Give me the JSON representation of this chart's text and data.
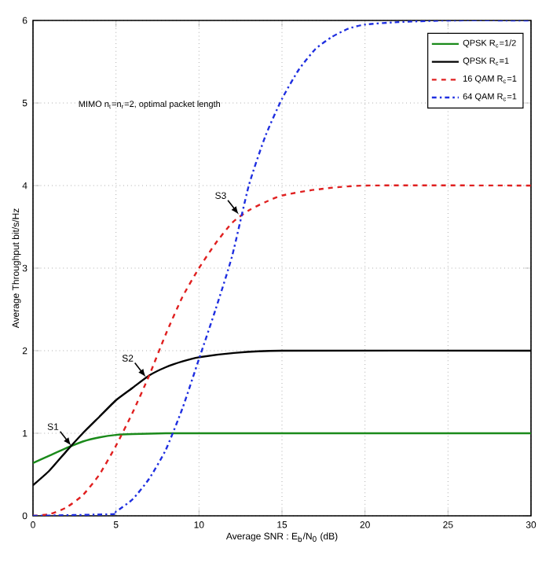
{
  "chart_data": {
    "type": "line",
    "xlabel": "Average SNR : E$_{b}$/N$_{0}$ (dB)",
    "ylabel": "Average Throughput bit/s/Hz",
    "xlim": [
      0,
      30
    ],
    "ylim": [
      0,
      6
    ],
    "xticks": [
      0,
      5,
      10,
      15,
      20,
      25,
      30
    ],
    "yticks": [
      0,
      1,
      2,
      3,
      4,
      5,
      6
    ],
    "grid": true,
    "legend": "top right",
    "marker": "none",
    "annotations": [
      "MIMO n$_{t}$=n$_{r}$=2, optimal packet length",
      {
        "text": "S1",
        "x": 2.3,
        "y": 0.85
      },
      {
        "text": "S2",
        "x": 6.8,
        "y": 1.68
      },
      {
        "text": "S3",
        "x": 12.4,
        "y": 3.65
      }
    ],
    "series": [
      {
        "name": "QPSK R$_{c}$=1/2",
        "color": "#1a8a1a",
        "line_style": "solid",
        "x": [
          0,
          1,
          2,
          3,
          4,
          5,
          6,
          8,
          10,
          30
        ],
        "values": [
          0.64,
          0.73,
          0.82,
          0.9,
          0.95,
          0.98,
          0.99,
          1.0,
          1.0,
          1.0
        ]
      },
      {
        "name": "QPSK R$_{c}$=1",
        "color": "#000000",
        "line_style": "solid",
        "x": [
          0,
          1,
          2,
          3,
          4,
          5,
          6,
          7,
          8,
          9,
          10,
          12,
          15,
          30
        ],
        "values": [
          0.37,
          0.55,
          0.78,
          1.0,
          1.2,
          1.4,
          1.55,
          1.7,
          1.8,
          1.87,
          1.92,
          1.97,
          2.0,
          2.0
        ]
      },
      {
        "name": "16 QAM R$_{c}$=1",
        "color": "#e02020",
        "line_style": "dashed",
        "x": [
          0,
          1,
          2,
          3,
          4,
          5,
          6,
          7,
          8,
          9,
          10,
          11,
          12,
          13,
          14,
          15,
          17,
          20,
          30
        ],
        "values": [
          0,
          0.02,
          0.1,
          0.25,
          0.5,
          0.85,
          1.25,
          1.7,
          2.2,
          2.65,
          3.0,
          3.3,
          3.55,
          3.7,
          3.8,
          3.88,
          3.95,
          4.0,
          4.0
        ]
      },
      {
        "name": "64 QAM R$_{c}$=1",
        "color": "#1f2fe0",
        "line_style": "dashdot",
        "x": [
          0,
          4.8,
          5,
          6,
          7,
          8,
          9,
          10,
          11,
          12,
          13,
          14,
          15,
          16,
          17,
          18,
          19,
          20,
          22,
          25,
          30
        ],
        "values": [
          0,
          0.02,
          0.05,
          0.2,
          0.45,
          0.8,
          1.3,
          1.9,
          2.5,
          3.15,
          4.0,
          4.6,
          5.05,
          5.4,
          5.65,
          5.8,
          5.9,
          5.95,
          5.98,
          6.0,
          6.0
        ]
      }
    ]
  }
}
